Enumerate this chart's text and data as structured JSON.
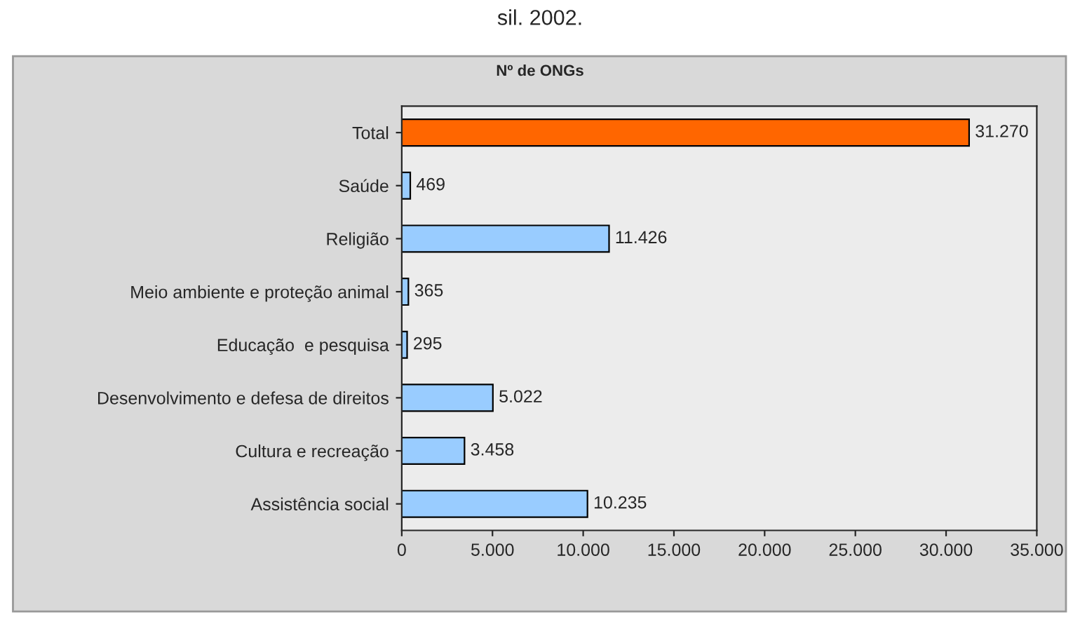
{
  "chart_data": {
    "type": "bar",
    "orientation": "horizontal",
    "title": "Nº de ONGs",
    "annotations": [
      "sil. 2002."
    ],
    "categories": [
      "Total",
      "Saúde",
      "Religião",
      "Meio ambiente e proteção animal",
      "Educação  e pesquisa",
      "Desenvolvimento e defesa de direitos",
      "Cultura e recreação",
      "Assistência social"
    ],
    "values": [
      31270,
      469,
      11426,
      365,
      295,
      5022,
      3458,
      10235
    ],
    "value_labels": [
      "31.270",
      "469",
      "11.426",
      "365",
      "295",
      "5.022",
      "3.458",
      "10.235"
    ],
    "colors": [
      "#ff6600",
      "#99ccff",
      "#99ccff",
      "#99ccff",
      "#99ccff",
      "#99ccff",
      "#99ccff",
      "#99ccff"
    ],
    "xlim": [
      0,
      35000
    ],
    "xticks": [
      0,
      {
        "value": 5000,
        "label": "5.000"
      },
      {
        "value": 10000,
        "label": "10.000"
      },
      {
        "value": 15000,
        "label": "15.000"
      },
      {
        "value": 20000,
        "label": "20.000"
      },
      {
        "value": 25000,
        "label": "25.000"
      },
      {
        "value": 30000,
        "label": "30.000"
      },
      {
        "value": 35000,
        "label": "35.000"
      }
    ],
    "grid": false,
    "legend": false
  }
}
